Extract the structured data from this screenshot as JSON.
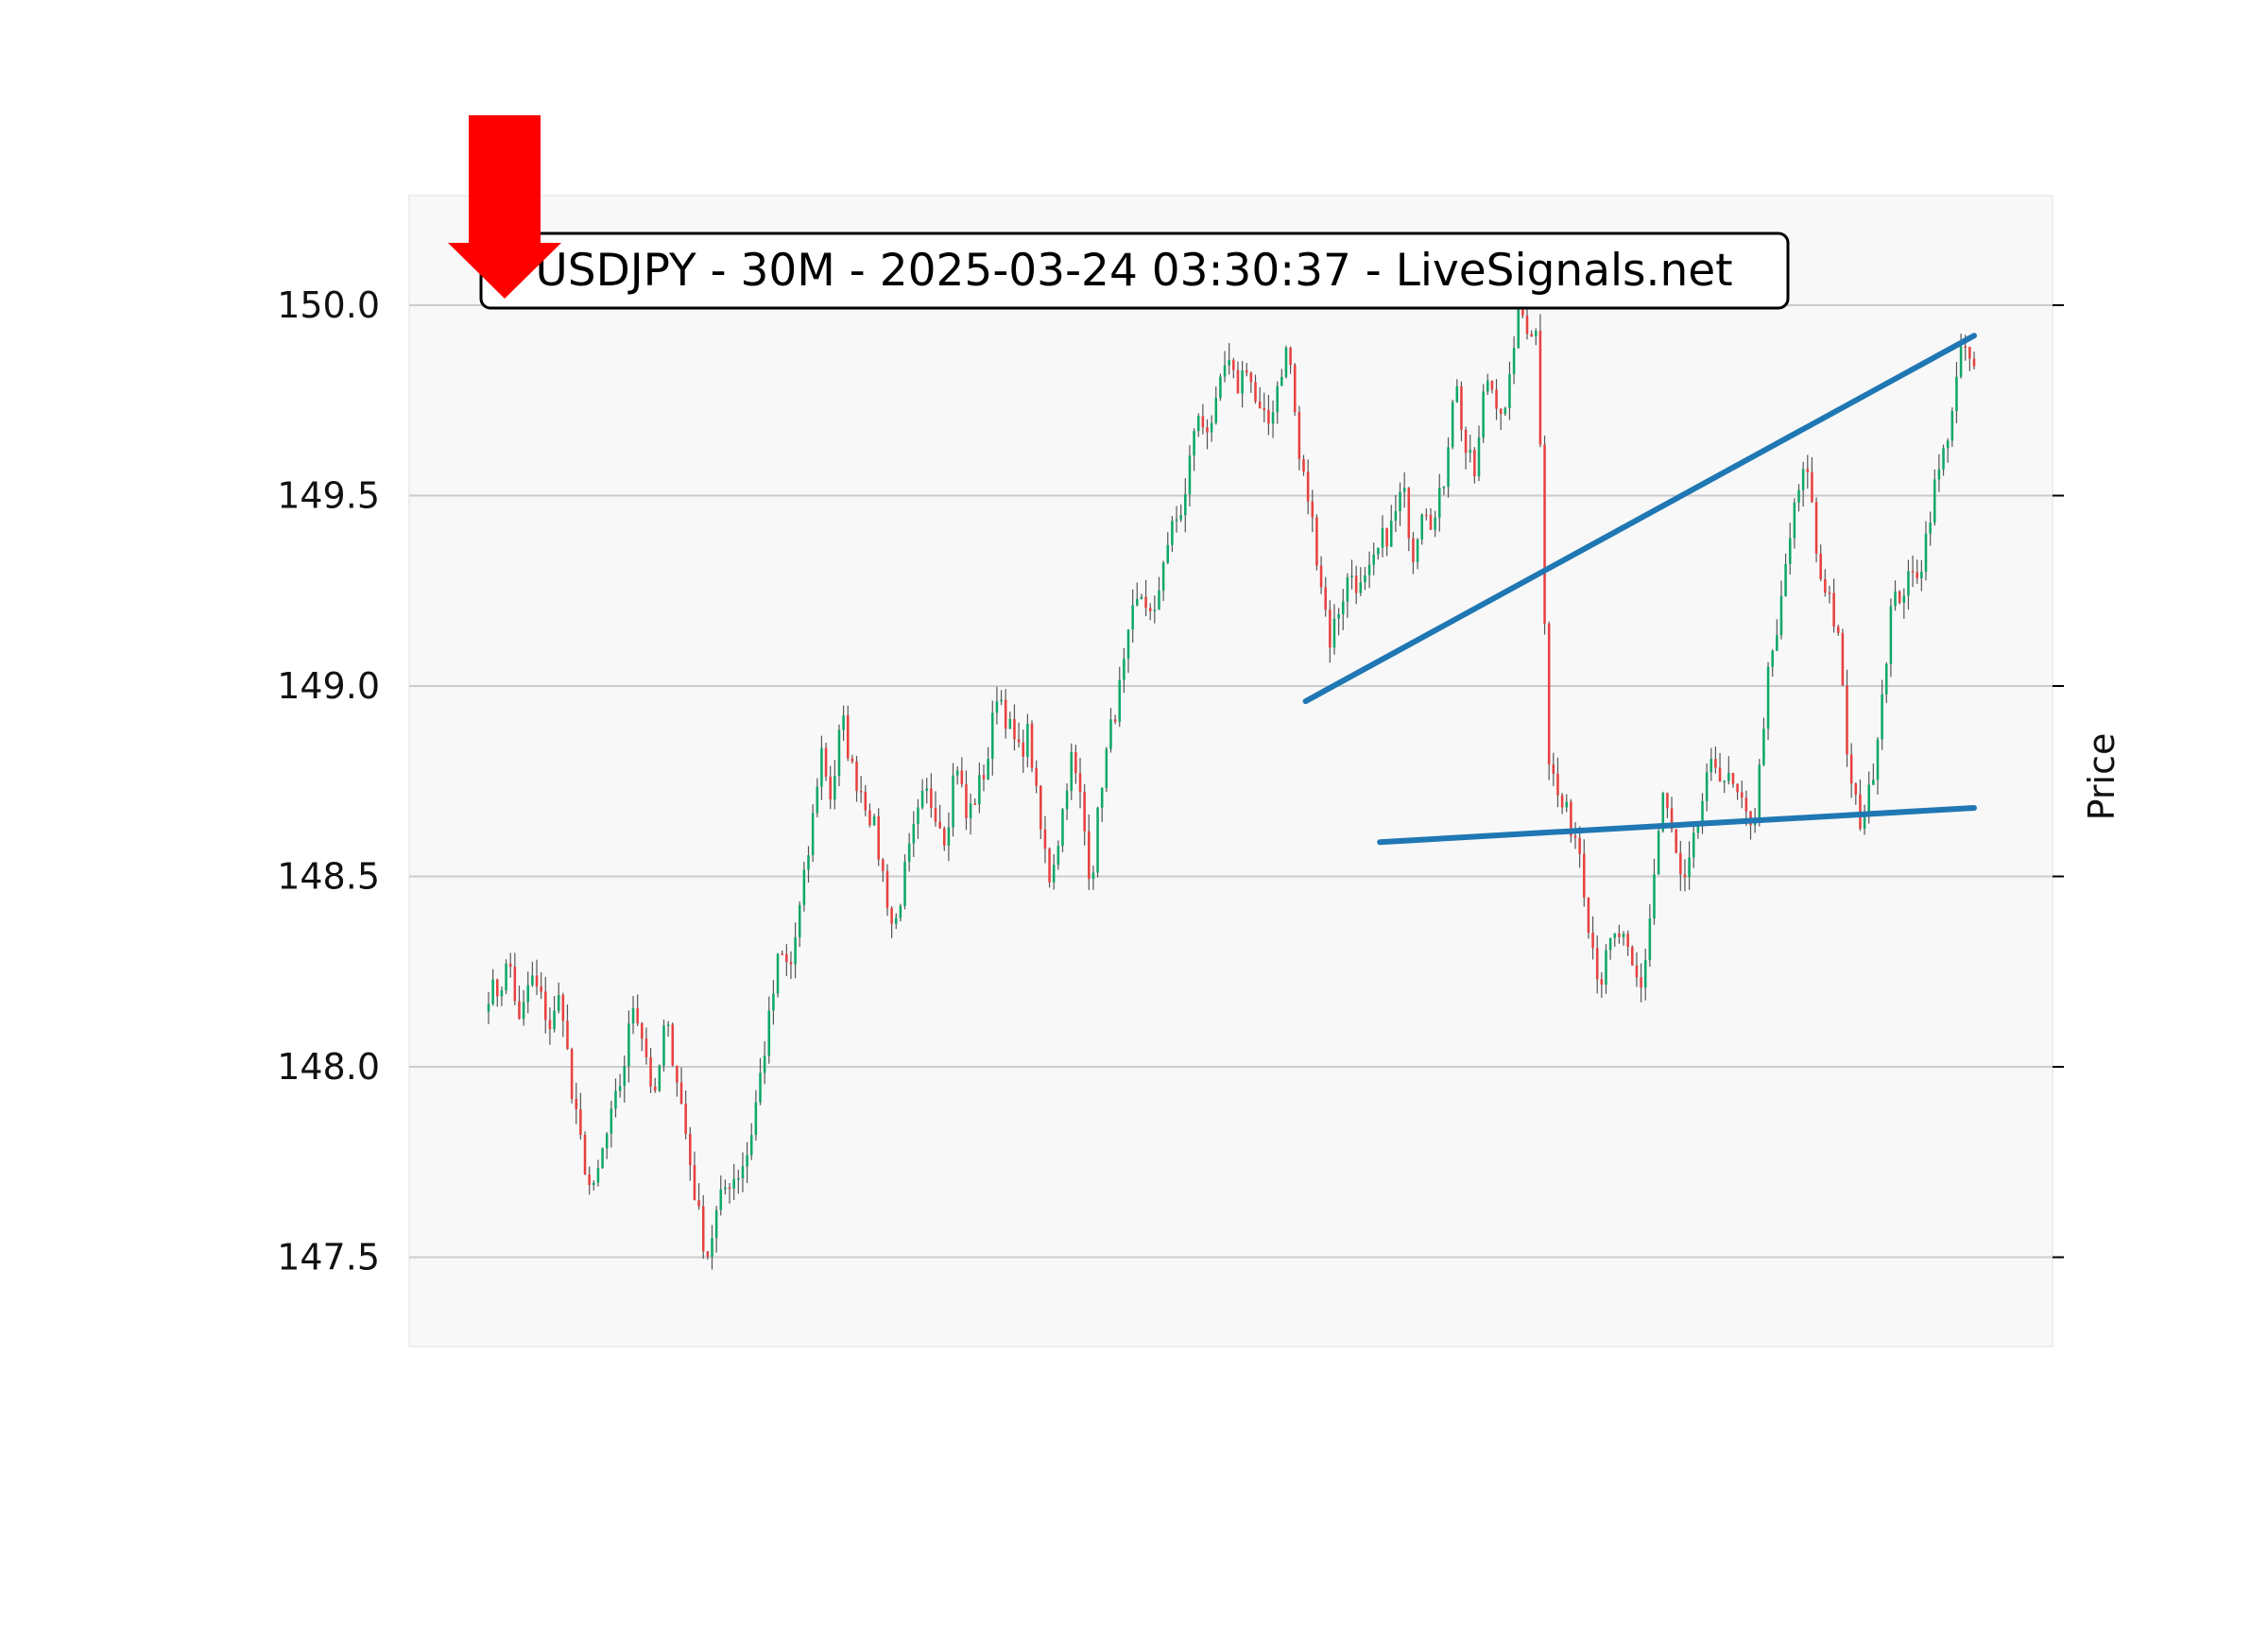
{
  "chart_data": {
    "type": "candlestick",
    "title": "USDJPY - 30M - 2025-03-24 03:30:37 - LiveSignals.net",
    "xlabel": "",
    "ylabel": "Price",
    "ylim": [
      147.27,
      150.28
    ],
    "y_ticks": [
      "147.5",
      "148.0",
      "148.5",
      "149.0",
      "149.5",
      "150.0"
    ],
    "grid": "horizontal",
    "signal": "sell",
    "price_points": [
      148.2,
      148.2,
      148.28,
      148.1,
      148.24,
      148.18,
      148.1,
      148.2,
      147.92,
      147.78,
      147.65,
      147.78,
      147.88,
      148.0,
      148.18,
      148.06,
      147.9,
      148.12,
      148.0,
      147.82,
      147.64,
      147.5,
      147.62,
      147.7,
      147.72,
      147.78,
      147.95,
      148.12,
      148.3,
      148.25,
      148.42,
      148.6,
      148.84,
      148.7,
      148.92,
      148.78,
      148.72,
      148.64,
      148.5,
      148.35,
      148.5,
      148.62,
      148.72,
      148.68,
      148.6,
      148.82,
      148.65,
      148.72,
      148.8,
      149.0,
      148.9,
      148.82,
      148.88,
      148.64,
      148.5,
      148.62,
      148.82,
      148.7,
      148.48,
      148.75,
      148.9,
      149.02,
      149.18,
      149.25,
      149.15,
      149.35,
      149.42,
      149.48,
      149.7,
      149.68,
      149.72,
      149.85,
      149.78,
      149.85,
      149.72,
      149.68,
      149.8,
      149.9,
      149.6,
      149.48,
      149.3,
      149.12,
      149.22,
      149.3,
      149.25,
      149.3,
      149.38,
      149.42,
      149.52,
      149.35,
      149.5,
      149.42,
      149.55,
      149.82,
      149.62,
      149.55,
      149.82,
      149.76,
      149.7,
      150.0,
      149.95,
      149.92,
      148.82,
      148.7,
      148.65,
      148.58,
      148.36,
      148.22,
      148.32,
      148.35,
      148.25,
      148.2,
      148.45,
      148.72,
      148.6,
      148.45,
      148.58,
      148.72,
      148.8,
      148.76,
      148.72,
      148.65,
      148.66,
      149.0,
      149.12,
      149.35,
      149.5,
      149.58,
      149.3,
      149.25,
      149.1,
      148.75,
      148.65,
      148.72,
      148.95,
      149.2,
      149.25,
      149.28,
      149.33,
      149.5,
      149.6,
      149.75,
      149.9,
      149.82
    ]
  },
  "trend_lines": [
    {
      "name": "upper",
      "from": [
        0.55,
        148.96
      ],
      "to": [
        1.0,
        149.92
      ]
    },
    {
      "name": "lower",
      "from": [
        0.6,
        148.59
      ],
      "to": [
        1.0,
        148.68
      ]
    }
  ],
  "colors": {
    "up": "#0fa868",
    "down": "#e8413f",
    "wick": "#555555",
    "trend": "#1f77b4",
    "arrow": "#ff0000",
    "plot_bg": "#f8f8f8",
    "grid": "#cccccc"
  }
}
